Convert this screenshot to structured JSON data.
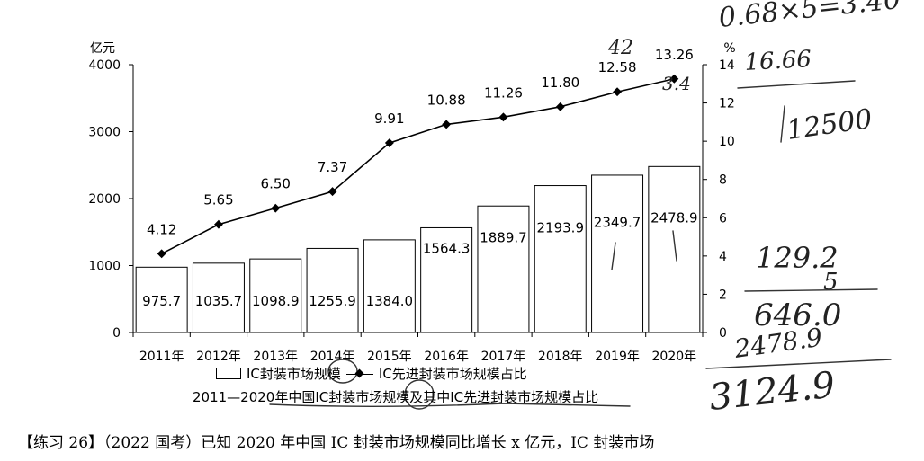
{
  "chart_data": {
    "type": "bar",
    "title": "2011—2020年中国IC封装市场规模及其中IC先进封装市场规模占比",
    "categories": [
      "2011年",
      "2012年",
      "2013年",
      "2014年",
      "2015年",
      "2016年",
      "2017年",
      "2018年",
      "2019年",
      "2020年"
    ],
    "y_left_unit": "亿元",
    "y_right_unit": "%",
    "ylim_left": [
      0,
      4000
    ],
    "ylim_right": [
      0,
      14
    ],
    "yticks_left": [
      0,
      1000,
      2000,
      3000,
      4000
    ],
    "yticks_right": [
      0,
      2,
      4,
      6,
      8,
      10,
      12,
      14
    ],
    "series": [
      {
        "name": "IC封装市场规模",
        "type": "bar",
        "axis": "left",
        "values": [
          975.7,
          1035.7,
          1098.9,
          1255.9,
          1384.0,
          1564.3,
          1889.7,
          2193.9,
          2349.7,
          2478.9
        ],
        "labels": [
          "975.7",
          "1035.7",
          "1098.9",
          "1255.9",
          "1384.0",
          "1564.3",
          "1889.7",
          "2193.9",
          "2349.7",
          "2478.9"
        ]
      },
      {
        "name": "IC先进封装市场规模占比",
        "type": "line",
        "axis": "right",
        "values": [
          4.12,
          5.65,
          6.5,
          7.37,
          9.91,
          10.88,
          11.26,
          11.8,
          12.58,
          13.26
        ],
        "labels": [
          "4.12",
          "5.65",
          "6.50",
          "7.37",
          "9.91",
          "10.88",
          "11.26",
          "11.80",
          "12.58",
          "13.26"
        ]
      }
    ],
    "legend": {
      "bar_label": "IC封装市场规模",
      "line_label": "IC先进封装市场规模占比",
      "placement": "bottom"
    },
    "grid": false
  },
  "question_text": "【练习 26】（2022 国考）已知 2020 年中国 IC 封装市场规模同比增长 x 亿元，IC 封装市场",
  "handwriting": [
    "0.68×5=3.40",
    "16.66",
    "12500",
    "42",
    "3.4",
    "129.2",
    "5",
    "646.0",
    "2478.9",
    "3124.9"
  ]
}
